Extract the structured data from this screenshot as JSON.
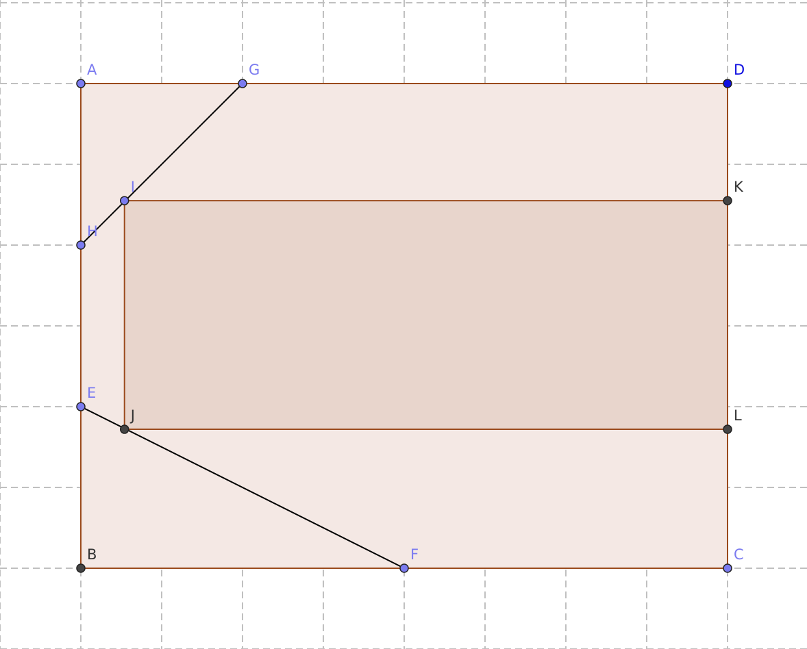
{
  "colors": {
    "free_point": "#7b7bf0",
    "selected_point": "#1010e0",
    "dependent_point": "#444444",
    "free_label": "#7b7bf0",
    "selected_label": "#1010e0",
    "dependent_label": "#333333",
    "polygon_fill_outer": "#f4e8e4",
    "polygon_fill_inner": "#e8d5cc",
    "polygon_stroke": "#9a4a1c",
    "grid": "#c0c0c0"
  },
  "grid": {
    "visible": true,
    "style": "dashed"
  },
  "points": [
    {
      "name": "A",
      "x": 0,
      "y": 6,
      "kind": "free"
    },
    {
      "name": "G",
      "x": 2,
      "y": 6,
      "kind": "free"
    },
    {
      "name": "D",
      "x": 8,
      "y": 6,
      "kind": "selected"
    },
    {
      "name": "I",
      "x": 0.54,
      "y": 4.55,
      "kind": "free"
    },
    {
      "name": "K",
      "x": 8,
      "y": 4.55,
      "kind": "dependent"
    },
    {
      "name": "H",
      "x": 0,
      "y": 4,
      "kind": "free"
    },
    {
      "name": "E",
      "x": 0,
      "y": 2,
      "kind": "free"
    },
    {
      "name": "J",
      "x": 0.54,
      "y": 1.72,
      "kind": "dependent"
    },
    {
      "name": "L",
      "x": 8,
      "y": 1.72,
      "kind": "dependent"
    },
    {
      "name": "B",
      "x": 0,
      "y": 0,
      "kind": "dependent"
    },
    {
      "name": "F",
      "x": 4,
      "y": 0,
      "kind": "free"
    },
    {
      "name": "C",
      "x": 8,
      "y": 0,
      "kind": "free"
    }
  ],
  "polygons": [
    {
      "name": "rect-ABCD",
      "vertices": [
        "A",
        "B",
        "C",
        "D"
      ]
    },
    {
      "name": "rect-IJLK",
      "vertices": [
        "I",
        "J",
        "L",
        "K"
      ]
    }
  ],
  "segments": [
    {
      "name": "segment-HG",
      "from": "H",
      "to": "G"
    },
    {
      "name": "segment-EF",
      "from": "E",
      "to": "F"
    }
  ]
}
